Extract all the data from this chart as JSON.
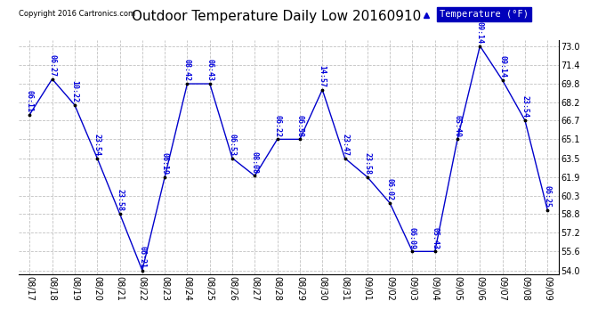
{
  "title": "Outdoor Temperature Daily Low 20160910",
  "copyright": "Copyright 2016 Cartronics.com",
  "legend_label": "Temperature (°F)",
  "dates": [
    "08/17",
    "08/18",
    "08/19",
    "08/20",
    "08/21",
    "08/22",
    "08/23",
    "08/24",
    "08/25",
    "08/26",
    "08/27",
    "08/28",
    "08/29",
    "08/30",
    "08/31",
    "09/01",
    "09/02",
    "09/03",
    "09/04",
    "09/05",
    "09/06",
    "09/07",
    "09/08",
    "09/09"
  ],
  "temps": [
    67.2,
    70.2,
    68.0,
    63.5,
    58.8,
    54.0,
    61.9,
    69.8,
    69.8,
    63.5,
    62.0,
    65.1,
    65.1,
    69.3,
    63.5,
    61.9,
    59.7,
    55.6,
    55.6,
    65.1,
    73.0,
    70.1,
    66.7,
    59.1
  ],
  "times": [
    "06:11",
    "06:27",
    "10:22",
    "23:54",
    "23:58",
    "06:21",
    "06:19",
    "08:42",
    "06:43",
    "06:53",
    "08:08",
    "06:22",
    "06:58",
    "14:57",
    "23:47",
    "23:58",
    "06:02",
    "06:09",
    "05:43",
    "05:40",
    "09:14",
    "09:14",
    "23:54",
    "06:25"
  ],
  "ylim_min": 54.0,
  "ylim_max": 73.0,
  "yticks": [
    54.0,
    55.6,
    57.2,
    58.8,
    60.3,
    61.9,
    63.5,
    65.1,
    66.7,
    68.2,
    69.8,
    71.4,
    73.0
  ],
  "line_color": "#0000cc",
  "bg_color": "#ffffff",
  "grid_color": "#bbbbbb",
  "text_color": "#0000dd",
  "title_color": "#000000",
  "copyright_color": "#000000",
  "legend_bg": "#0000bb",
  "legend_text_color": "#ffffff",
  "label_fontsize": 6.0,
  "tick_fontsize": 7.0,
  "title_fontsize": 11.0
}
